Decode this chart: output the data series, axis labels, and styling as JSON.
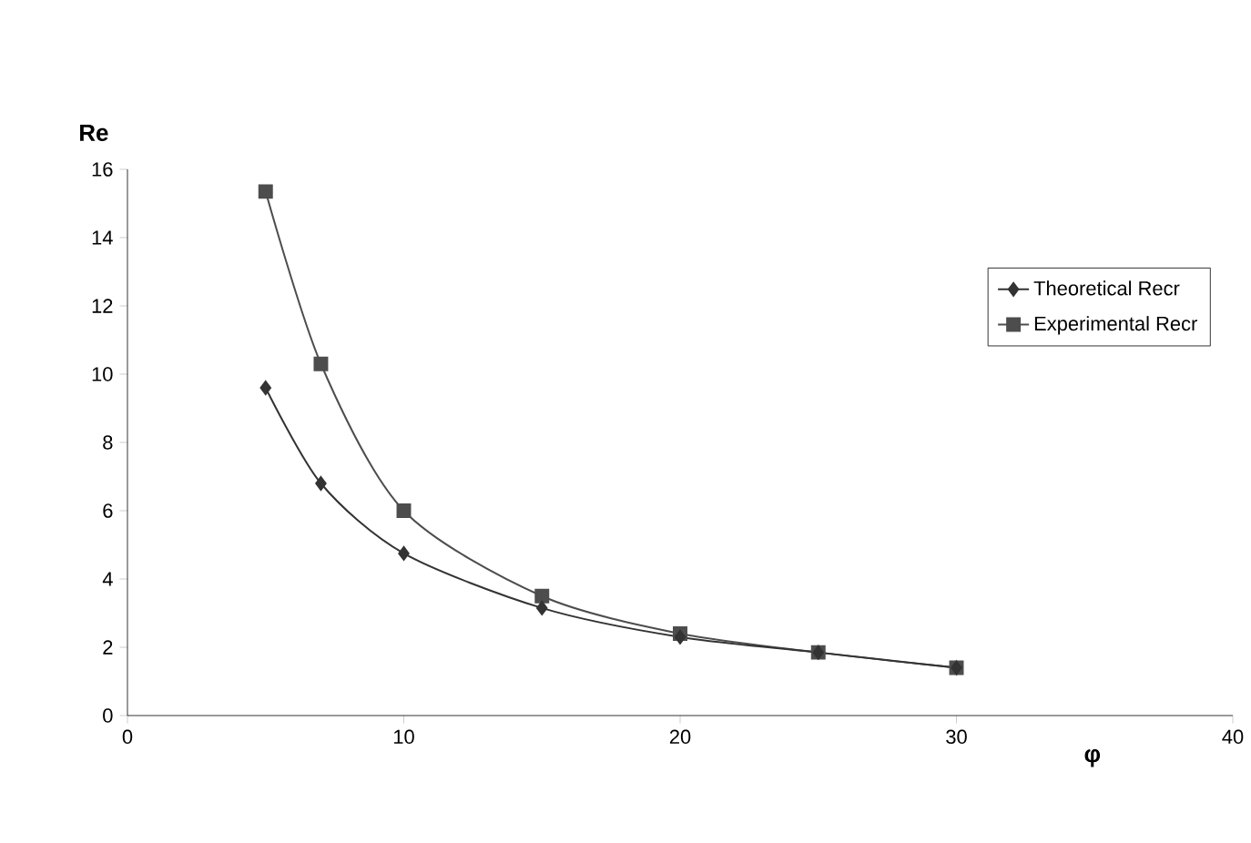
{
  "chart_data": {
    "type": "line",
    "xlabel": "**φ**",
    "ylabel": "**Re**",
    "xlim": [
      0,
      40
    ],
    "xticks": [
      0,
      10,
      20,
      30,
      40
    ],
    "ylim": [
      0,
      16
    ],
    "yticks": [
      0,
      2,
      4,
      6,
      8,
      10,
      12,
      14,
      16
    ],
    "legend": "top right",
    "grid": false,
    "line_style": "solid",
    "series": [
      {
        "name": "Theoretical Recr",
        "color": "#333333",
        "marker": "diamond",
        "x": [
          5,
          7,
          10,
          15,
          20,
          25,
          30
        ],
        "values": [
          9.6,
          6.8,
          4.75,
          3.15,
          2.3,
          1.85,
          1.4
        ]
      },
      {
        "name": "Experimental Recr",
        "color": "#4d4d4d",
        "marker": "square",
        "x": [
          5,
          7,
          10,
          15,
          20,
          25,
          30
        ],
        "values": [
          15.35,
          10.3,
          6.0,
          3.5,
          2.4,
          1.85,
          1.4
        ]
      }
    ]
  }
}
